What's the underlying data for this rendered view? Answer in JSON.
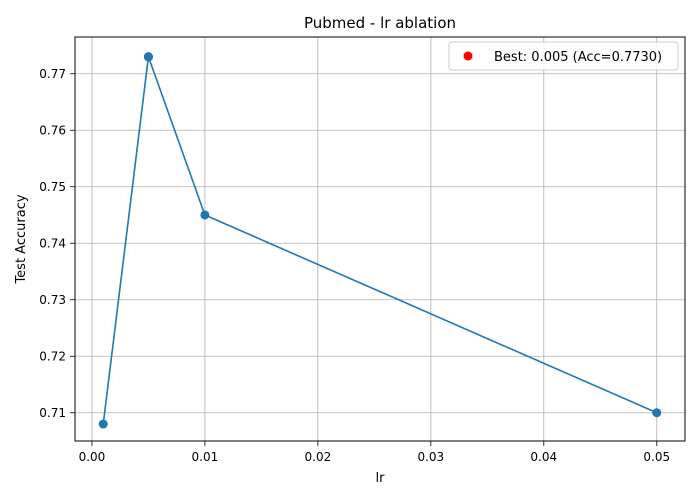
{
  "colors": {
    "line": "#1f77b4",
    "best": "#ff0000",
    "grid": "#b0b0b0",
    "axis": "#000000",
    "legend_border": "#cccccc"
  },
  "chart_data": {
    "type": "line",
    "title": "Pubmed - lr ablation",
    "xlabel": "lr",
    "ylabel": "Test Accuracy",
    "xlim": [
      -0.0015,
      0.0525
    ],
    "ylim": [
      0.705,
      0.7765
    ],
    "grid": true,
    "legend_position": "top-right",
    "x_ticks": [
      0.0,
      0.01,
      0.02,
      0.03,
      0.04,
      0.05
    ],
    "x_tick_labels": [
      "0.00",
      "0.01",
      "0.02",
      "0.03",
      "0.04",
      "0.05"
    ],
    "y_ticks": [
      0.71,
      0.72,
      0.73,
      0.74,
      0.75,
      0.76,
      0.77
    ],
    "y_tick_labels": [
      "0.71",
      "0.72",
      "0.73",
      "0.74",
      "0.75",
      "0.76",
      "0.77"
    ],
    "series": [
      {
        "x": [
          0.001,
          0.005,
          0.01,
          0.05
        ],
        "values": [
          0.708,
          0.773,
          0.745,
          0.71
        ]
      }
    ],
    "best_point": {
      "name": "Best: 0.005 (Acc=0.7730)",
      "x": 0.005,
      "y": 0.773
    }
  }
}
